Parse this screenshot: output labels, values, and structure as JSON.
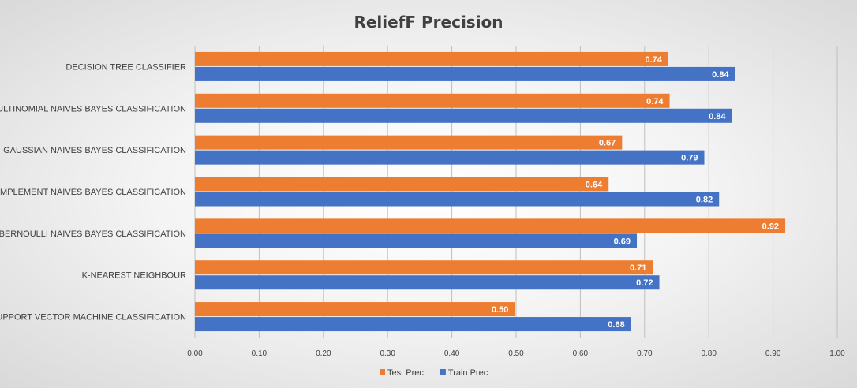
{
  "chart_data": {
    "type": "bar",
    "orientation": "horizontal",
    "title": "ReliefF Precision",
    "xlabel": "",
    "ylabel": "",
    "xlim": [
      0,
      1
    ],
    "ticks": [
      "0.00",
      "0.10",
      "0.20",
      "0.30",
      "0.40",
      "0.50",
      "0.60",
      "0.70",
      "0.80",
      "0.90",
      "1.00"
    ],
    "grid": true,
    "legend_position": "bottom",
    "categories": [
      "DECISION TREE CLASSIFIER",
      "MULTINOMIAL NAIVES BAYES CLASSIFICATION",
      "GAUSSIAN NAIVES BAYES CLASSIFICATION",
      "COMPLEMENT NAIVES BAYES CLASSIFICATION",
      "BERNOULLI NAIVES BAYES CLASSIFICATION",
      "K-NEAREST NEIGHBOUR",
      "SUPPORT VECTOR MACHINE CLASSIFICATION"
    ],
    "series": [
      {
        "name": "Test Prec",
        "color": "#ed7d31",
        "values": [
          0.737,
          0.739,
          0.665,
          0.644,
          0.919,
          0.713,
          0.498
        ],
        "labels": [
          "0.74",
          "0.74",
          "0.67",
          "0.64",
          "0.92",
          "0.71",
          "0.50"
        ]
      },
      {
        "name": "Train Prec",
        "color": "#4472c4",
        "values": [
          0.841,
          0.836,
          0.793,
          0.816,
          0.688,
          0.723,
          0.679
        ],
        "labels": [
          "0.84",
          "0.84",
          "0.79",
          "0.82",
          "0.69",
          "0.72",
          "0.68"
        ]
      }
    ]
  }
}
